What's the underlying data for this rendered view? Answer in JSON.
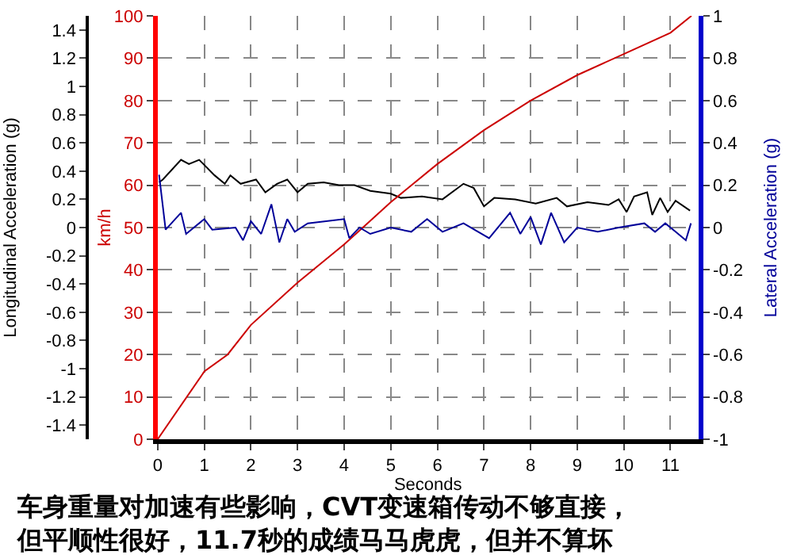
{
  "chart_data": {
    "type": "line",
    "xlabel": "Seconds",
    "ylabel": "Longitudinal Acceleration (g)",
    "y2label": "km/h",
    "y3label": "Lateral Acceleration (g)",
    "xlim": [
      0,
      11.6
    ],
    "xticks": [
      0,
      1,
      2,
      3,
      4,
      5,
      6,
      7,
      8,
      9,
      10,
      11
    ],
    "ylim": [
      -1.5,
      1.5
    ],
    "yticks": [
      -1.4,
      -1.2,
      -1,
      -0.8,
      -0.6,
      -0.4,
      -0.2,
      0,
      0.2,
      0.4,
      0.6,
      0.8,
      1,
      1.2,
      1.4
    ],
    "y2lim": [
      0,
      100
    ],
    "y2ticks": [
      0,
      10,
      20,
      30,
      40,
      50,
      60,
      70,
      80,
      90,
      100
    ],
    "y3lim": [
      -1,
      1
    ],
    "y3ticks": [
      -1,
      -0.8,
      -0.6,
      -0.4,
      -0.2,
      0,
      0.2,
      0.4,
      0.6,
      0.8,
      1
    ],
    "grid": true,
    "legend": false,
    "marker": "none",
    "line_style": "solid",
    "series": [
      {
        "color": "#000000",
        "axis": "y",
        "x": [
          0.03,
          0.11,
          0.5,
          0.67,
          0.89,
          1.22,
          1.44,
          1.56,
          1.78,
          2.11,
          2.31,
          2.56,
          2.78,
          3,
          3.22,
          3.56,
          3.89,
          4.22,
          4.56,
          5,
          5.22,
          5.67,
          6.11,
          6.56,
          6.78,
          7,
          7.22,
          7.67,
          8.11,
          8.56,
          8.78,
          9.22,
          9.67,
          9.89,
          10.06,
          10.22,
          10.5,
          10.61,
          10.78,
          10.94,
          11.11,
          11.42
        ],
        "values": [
          0.32,
          0.34,
          0.48,
          0.45,
          0.48,
          0.37,
          0.31,
          0.37,
          0.31,
          0.34,
          0.25,
          0.31,
          0.34,
          0.25,
          0.31,
          0.32,
          0.3,
          0.3,
          0.26,
          0.24,
          0.21,
          0.22,
          0.2,
          0.31,
          0.28,
          0.15,
          0.21,
          0.2,
          0.17,
          0.21,
          0.15,
          0.18,
          0.16,
          0.2,
          0.11,
          0.22,
          0.25,
          0.09,
          0.21,
          0.11,
          0.19,
          0.12
        ]
      },
      {
        "color": "#cc0000",
        "axis": "y2",
        "x": [
          0,
          1,
          1.5,
          2,
          3,
          4,
          4.5,
          5,
          6,
          7,
          8,
          9,
          10,
          11,
          11.45
        ],
        "values": [
          0,
          16,
          20,
          27,
          37,
          46,
          51,
          56,
          65,
          73,
          80,
          86,
          91,
          96,
          100
        ]
      },
      {
        "color": "#000099",
        "axis": "y3",
        "x": [
          0.03,
          0.17,
          0.5,
          0.61,
          1,
          1.17,
          1.67,
          1.83,
          2,
          2.22,
          2.44,
          2.61,
          2.78,
          2.94,
          3.22,
          4,
          4.11,
          4.33,
          4.56,
          5,
          5.44,
          5.78,
          6.11,
          6.56,
          7.11,
          7.56,
          7.78,
          8,
          8.22,
          8.44,
          8.72,
          9,
          9.44,
          9.89,
          10.44,
          10.67,
          10.89,
          11.11,
          11.33,
          11.44
        ],
        "values": [
          0.25,
          -0.01,
          0.07,
          -0.03,
          0.04,
          -0.01,
          0.0,
          -0.06,
          0.03,
          -0.03,
          0.11,
          -0.07,
          0.04,
          -0.02,
          0.02,
          0.04,
          -0.05,
          0.0,
          -0.03,
          0.0,
          -0.02,
          0.04,
          -0.02,
          0.02,
          -0.05,
          0.07,
          -0.03,
          0.05,
          -0.08,
          0.07,
          -0.07,
          0.0,
          -0.02,
          0.0,
          0.02,
          -0.02,
          0.02,
          -0.02,
          -0.06,
          0.02
        ]
      }
    ],
    "annotations": [
      "车身重量对加速有些影响，CVT变速箱传动不够直接，但平顺性很好，11.7秒的成绩马马虎虎，但并不算坏"
    ]
  }
}
